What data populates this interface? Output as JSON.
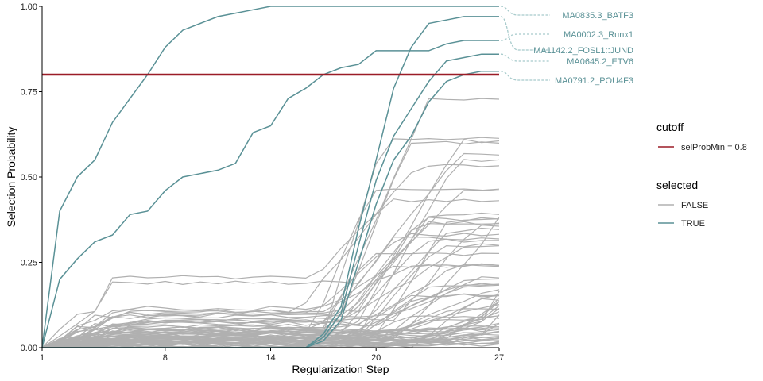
{
  "colors": {
    "selected": "#5a9196",
    "unselected": "#b0b0b0",
    "cutoff": "#9b1c27",
    "connector": "#a8cbcc",
    "axis": "#000000"
  },
  "chart_data": {
    "type": "line",
    "title": "",
    "xlabel": "Regularization Step",
    "ylabel": "Selection Probability",
    "xlim": [
      1,
      27
    ],
    "ylim": [
      0,
      1
    ],
    "xticks": [
      1,
      8,
      14,
      20,
      27
    ],
    "yticks": [
      0,
      0.25,
      0.5,
      0.75,
      1
    ],
    "ytick_labels": [
      "0.00",
      "0.25",
      "0.50",
      "0.75",
      "1.00"
    ],
    "grid": false,
    "cutoff": {
      "name": "selProbMin = 0.8",
      "value": 0.8
    },
    "legend": {
      "position": "right",
      "cutoff_title": "cutoff",
      "cutoff_label": "selProbMin = 0.8",
      "selected_title": "selected",
      "items": [
        "FALSE",
        "TRUE"
      ]
    },
    "selected_series": [
      {
        "name": "MA0835.3_BATF3",
        "values": [
          0,
          0.4,
          0.5,
          0.55,
          0.66,
          0.73,
          0.8,
          0.88,
          0.93,
          0.95,
          0.97,
          0.98,
          0.99,
          1,
          1,
          1,
          1,
          1,
          1,
          1,
          1,
          1,
          1,
          1,
          1,
          1,
          1
        ]
      },
      {
        "name": "MA0002.3_Runx1",
        "values": [
          0,
          0.2,
          0.26,
          0.31,
          0.33,
          0.39,
          0.4,
          0.46,
          0.5,
          0.51,
          0.52,
          0.54,
          0.63,
          0.65,
          0.73,
          0.76,
          0.8,
          0.82,
          0.83,
          0.87,
          0.87,
          0.87,
          0.87,
          0.89,
          0.9,
          0.9,
          0.9
        ]
      },
      {
        "name": "MA1142.2_FOSL1::JUND",
        "values": [
          0,
          0,
          0,
          0,
          0,
          0,
          0,
          0,
          0,
          0,
          0,
          0,
          0,
          0,
          0,
          0,
          0.04,
          0.12,
          0.35,
          0.55,
          0.76,
          0.88,
          0.95,
          0.96,
          0.97,
          0.97,
          0.97
        ]
      },
      {
        "name": "MA0645.2_ETV6",
        "values": [
          0,
          0,
          0,
          0,
          0,
          0,
          0,
          0,
          0,
          0,
          0,
          0,
          0,
          0,
          0,
          0,
          0.03,
          0.1,
          0.3,
          0.49,
          0.62,
          0.7,
          0.78,
          0.84,
          0.85,
          0.86,
          0.86
        ]
      },
      {
        "name": "MA0791.2_POU4F3",
        "values": [
          0,
          0,
          0,
          0,
          0,
          0,
          0,
          0,
          0,
          0,
          0,
          0,
          0,
          0,
          0,
          0,
          0.02,
          0.08,
          0.25,
          0.42,
          0.55,
          0.62,
          0.72,
          0.78,
          0.8,
          0.81,
          0.81
        ]
      }
    ]
  }
}
